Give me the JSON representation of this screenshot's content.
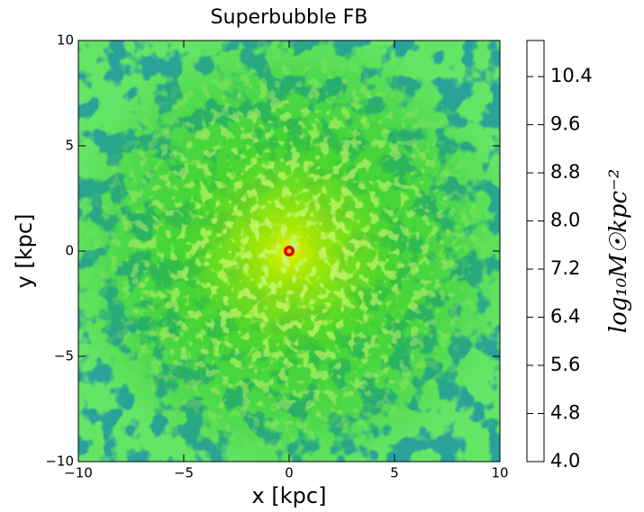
{
  "chart_data": {
    "type": "image",
    "title": "Superbubble FB",
    "xlabel": "x [kpc]",
    "ylabel": "y [kpc]",
    "xlim": [
      -10,
      10
    ],
    "ylim": [
      -10,
      10
    ],
    "xticks": [
      {
        "value": -10,
        "label": "−10"
      },
      {
        "value": -5,
        "label": "−5"
      },
      0,
      5,
      10
    ],
    "yticks": [
      {
        "value": -10,
        "label": "−10"
      },
      {
        "value": -5,
        "label": "−5"
      },
      0,
      5,
      10
    ],
    "colorbar": {
      "label": "log₁₀M☉kpc⁻²",
      "lim": [
        4,
        11
      ],
      "ticks": [
        {
          "value": 4,
          "label": "4.0"
        },
        4.8,
        5.6,
        6.4,
        7.2,
        {
          "value": 8,
          "label": "8.0"
        },
        8.8,
        9.6,
        10.4
      ]
    }
  }
}
